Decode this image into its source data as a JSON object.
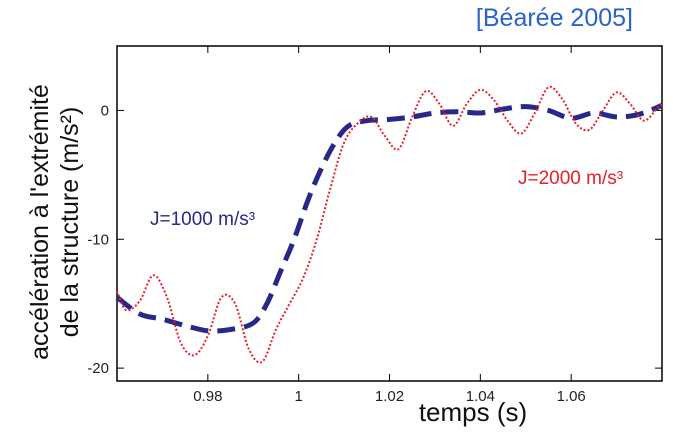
{
  "citation": "[Béarée 2005]",
  "chart_data": {
    "type": "line",
    "xlabel": "temps (s)",
    "ylabel_line1": "accélération à l'extrémité",
    "ylabel_line2": "de la structure (m/s²)",
    "xlim": [
      0.96,
      1.08
    ],
    "ylim": [
      -21,
      5
    ],
    "xticks": [
      0.98,
      1,
      1.02,
      1.04,
      1.06
    ],
    "xtick_labels": [
      "0.98",
      "1",
      "1.02",
      "1.04",
      "1.06"
    ],
    "yticks": [
      0,
      -10,
      -20
    ],
    "ytick_labels": [
      "0",
      "-10",
      "-20"
    ],
    "grid": false,
    "series": [
      {
        "name": "J=1000 m/s³",
        "color": "#27288a",
        "style": "dashed",
        "x": [
          0.96,
          0.965,
          0.97,
          0.975,
          0.98,
          0.985,
          0.99,
          0.993,
          0.996,
          0.999,
          1.002,
          1.005,
          1.008,
          1.011,
          1.015,
          1.02,
          1.025,
          1.03,
          1.035,
          1.04,
          1.045,
          1.05,
          1.055,
          1.06,
          1.065,
          1.07,
          1.075,
          1.08
        ],
        "y": [
          -14.5,
          -15.8,
          -16.2,
          -16.7,
          -17.1,
          -17.0,
          -16.5,
          -15.0,
          -12.5,
          -10.0,
          -7.0,
          -4.5,
          -2.5,
          -1.2,
          -0.8,
          -0.7,
          -0.5,
          -0.2,
          -0.1,
          -0.2,
          0.1,
          0.3,
          0.0,
          -0.6,
          -0.2,
          -0.5,
          -0.3,
          0.4
        ]
      },
      {
        "name": "J=2000 m/s³",
        "color": "#e8202a",
        "style": "dotted",
        "x": [
          0.96,
          0.962,
          0.965,
          0.968,
          0.971,
          0.974,
          0.977,
          0.98,
          0.983,
          0.986,
          0.989,
          0.992,
          0.995,
          0.998,
          1.001,
          1.004,
          1.007,
          1.01,
          1.013,
          1.016,
          1.019,
          1.022,
          1.025,
          1.028,
          1.031,
          1.034,
          1.037,
          1.04,
          1.043,
          1.046,
          1.049,
          1.052,
          1.055,
          1.058,
          1.061,
          1.064,
          1.067,
          1.07,
          1.073,
          1.076,
          1.079,
          1.08
        ],
        "y": [
          -14.0,
          -15.5,
          -14.8,
          -12.8,
          -14.5,
          -18.0,
          -19.0,
          -17.5,
          -14.5,
          -15.0,
          -18.5,
          -19.5,
          -17.0,
          -15.0,
          -13.0,
          -10.0,
          -6.0,
          -2.5,
          -1.0,
          -0.5,
          -2.0,
          -3.0,
          -0.5,
          1.5,
          0.5,
          -1.2,
          0.5,
          1.6,
          0.8,
          -0.8,
          -1.8,
          -0.2,
          1.8,
          0.9,
          -1.0,
          -1.5,
          0.0,
          1.4,
          0.5,
          -0.8,
          0.2,
          0.5
        ]
      }
    ]
  }
}
